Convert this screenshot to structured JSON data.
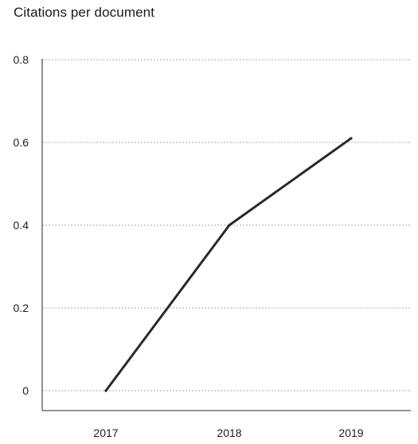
{
  "chart_data": {
    "type": "line",
    "title": "Citations per document",
    "xlabel": "",
    "ylabel": "",
    "categories": [
      "2017",
      "2018",
      "2019"
    ],
    "values": [
      0,
      0.4,
      0.61
    ],
    "ylim": [
      0,
      0.8
    ],
    "yticks": [
      "0",
      "0.2",
      "0.4",
      "0.6",
      "0.8"
    ],
    "ytick_values": [
      0,
      0.2,
      0.4,
      0.6,
      0.8
    ],
    "grid": "horizontal dashed",
    "legend": "none",
    "line_color": "#2a2a2a",
    "grid_color": "#a8a8a8"
  }
}
